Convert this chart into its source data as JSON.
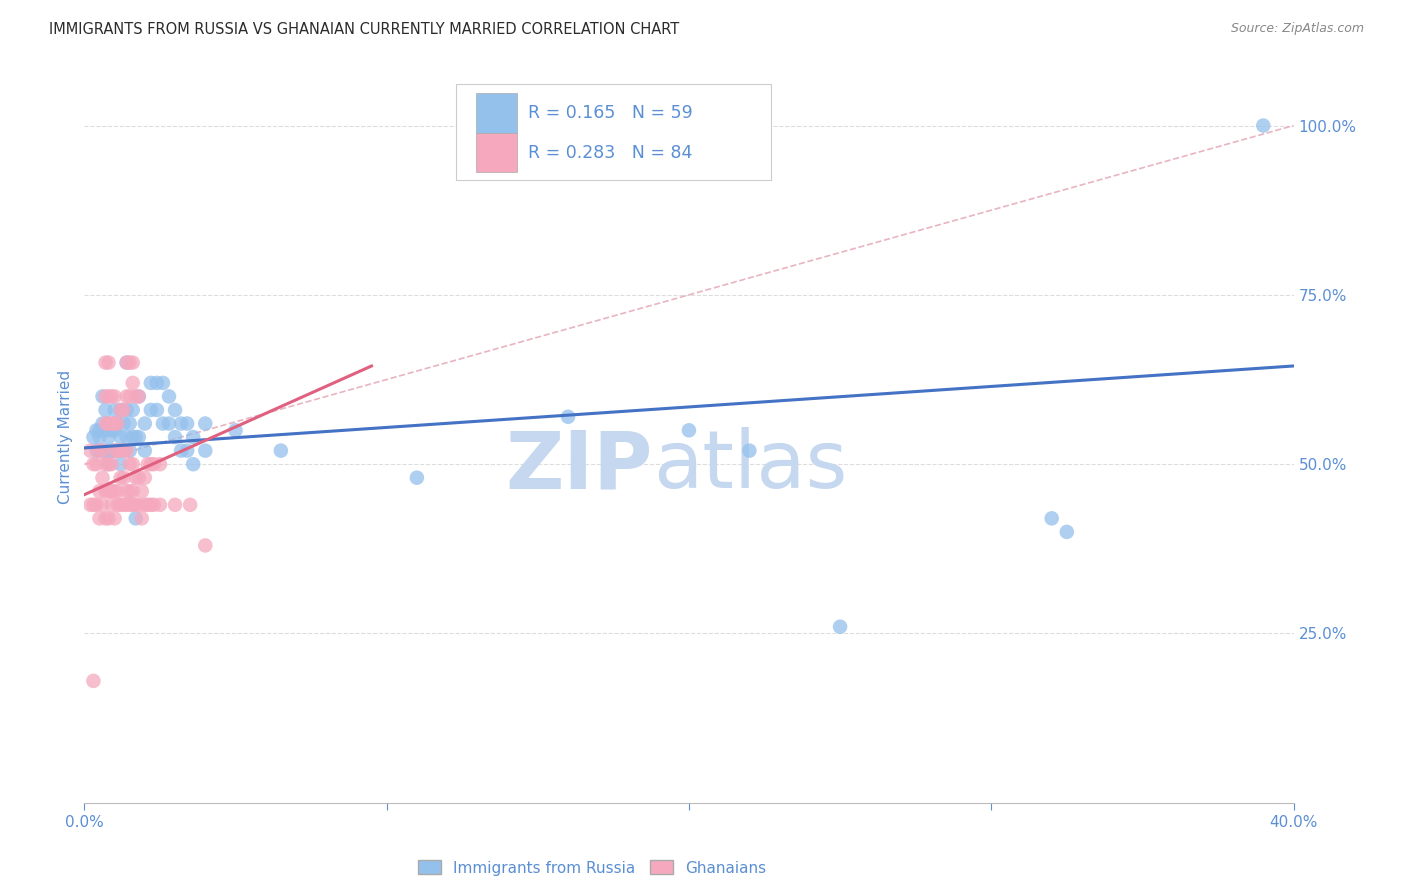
{
  "title": "IMMIGRANTS FROM RUSSIA VS GHANAIAN CURRENTLY MARRIED CORRELATION CHART",
  "source": "Source: ZipAtlas.com",
  "ylabel": "Currently Married",
  "xlim": [
    0.0,
    0.4
  ],
  "ylim": [
    0.0,
    1.08
  ],
  "x_ticks": [
    0.0,
    0.1,
    0.2,
    0.3,
    0.4
  ],
  "x_tick_labels_show": [
    "0.0%",
    "",
    "",
    "",
    "40.0%"
  ],
  "y_ticks": [
    0.25,
    0.5,
    0.75,
    1.0
  ],
  "y_tick_labels": [
    "25.0%",
    "50.0%",
    "75.0%",
    "100.0%"
  ],
  "legend_label1": "Immigrants from Russia",
  "legend_label2": "Ghanaians",
  "blue_color": "#94C0EC",
  "pink_color": "#F5A8BE",
  "title_color": "#333333",
  "axis_label_color": "#5B8FD4",
  "watermark_color": "#C5D8F0",
  "blue_scatter": [
    [
      0.003,
      0.54
    ],
    [
      0.004,
      0.52
    ],
    [
      0.004,
      0.55
    ],
    [
      0.005,
      0.52
    ],
    [
      0.005,
      0.54
    ],
    [
      0.005,
      0.55
    ],
    [
      0.006,
      0.52
    ],
    [
      0.006,
      0.56
    ],
    [
      0.006,
      0.6
    ],
    [
      0.007,
      0.52
    ],
    [
      0.007,
      0.55
    ],
    [
      0.007,
      0.58
    ],
    [
      0.008,
      0.5
    ],
    [
      0.008,
      0.54
    ],
    [
      0.008,
      0.56
    ],
    [
      0.009,
      0.52
    ],
    [
      0.009,
      0.55
    ],
    [
      0.01,
      0.52
    ],
    [
      0.01,
      0.55
    ],
    [
      0.01,
      0.58
    ],
    [
      0.011,
      0.52
    ],
    [
      0.011,
      0.56
    ],
    [
      0.012,
      0.5
    ],
    [
      0.012,
      0.54
    ],
    [
      0.012,
      0.58
    ],
    [
      0.013,
      0.52
    ],
    [
      0.013,
      0.56
    ],
    [
      0.014,
      0.54
    ],
    [
      0.014,
      0.58
    ],
    [
      0.014,
      0.65
    ],
    [
      0.015,
      0.52
    ],
    [
      0.015,
      0.56
    ],
    [
      0.016,
      0.54
    ],
    [
      0.016,
      0.58
    ],
    [
      0.017,
      0.42
    ],
    [
      0.017,
      0.54
    ],
    [
      0.018,
      0.54
    ],
    [
      0.018,
      0.6
    ],
    [
      0.02,
      0.52
    ],
    [
      0.02,
      0.56
    ],
    [
      0.022,
      0.58
    ],
    [
      0.022,
      0.62
    ],
    [
      0.024,
      0.58
    ],
    [
      0.024,
      0.62
    ],
    [
      0.026,
      0.56
    ],
    [
      0.026,
      0.62
    ],
    [
      0.028,
      0.56
    ],
    [
      0.028,
      0.6
    ],
    [
      0.03,
      0.54
    ],
    [
      0.03,
      0.58
    ],
    [
      0.032,
      0.52
    ],
    [
      0.032,
      0.56
    ],
    [
      0.034,
      0.52
    ],
    [
      0.034,
      0.56
    ],
    [
      0.036,
      0.5
    ],
    [
      0.036,
      0.54
    ],
    [
      0.04,
      0.52
    ],
    [
      0.04,
      0.56
    ],
    [
      0.05,
      0.55
    ],
    [
      0.065,
      0.52
    ],
    [
      0.11,
      0.48
    ],
    [
      0.16,
      0.57
    ],
    [
      0.2,
      0.55
    ],
    [
      0.22,
      0.52
    ],
    [
      0.25,
      0.26
    ],
    [
      0.32,
      0.42
    ],
    [
      0.325,
      0.4
    ],
    [
      0.39,
      1.0
    ]
  ],
  "pink_scatter": [
    [
      0.002,
      0.52
    ],
    [
      0.002,
      0.44
    ],
    [
      0.003,
      0.5
    ],
    [
      0.003,
      0.44
    ],
    [
      0.004,
      0.5
    ],
    [
      0.004,
      0.44
    ],
    [
      0.005,
      0.52
    ],
    [
      0.005,
      0.46
    ],
    [
      0.005,
      0.42
    ],
    [
      0.006,
      0.52
    ],
    [
      0.006,
      0.48
    ],
    [
      0.006,
      0.44
    ],
    [
      0.007,
      0.5
    ],
    [
      0.007,
      0.46
    ],
    [
      0.007,
      0.42
    ],
    [
      0.007,
      0.56
    ],
    [
      0.007,
      0.6
    ],
    [
      0.007,
      0.65
    ],
    [
      0.008,
      0.5
    ],
    [
      0.008,
      0.46
    ],
    [
      0.008,
      0.42
    ],
    [
      0.008,
      0.56
    ],
    [
      0.008,
      0.6
    ],
    [
      0.008,
      0.65
    ],
    [
      0.009,
      0.5
    ],
    [
      0.009,
      0.46
    ],
    [
      0.009,
      0.44
    ],
    [
      0.009,
      0.56
    ],
    [
      0.009,
      0.6
    ],
    [
      0.01,
      0.52
    ],
    [
      0.01,
      0.46
    ],
    [
      0.01,
      0.42
    ],
    [
      0.01,
      0.56
    ],
    [
      0.01,
      0.6
    ],
    [
      0.011,
      0.52
    ],
    [
      0.011,
      0.46
    ],
    [
      0.011,
      0.44
    ],
    [
      0.011,
      0.56
    ],
    [
      0.012,
      0.52
    ],
    [
      0.012,
      0.48
    ],
    [
      0.012,
      0.44
    ],
    [
      0.012,
      0.58
    ],
    [
      0.013,
      0.52
    ],
    [
      0.013,
      0.48
    ],
    [
      0.013,
      0.44
    ],
    [
      0.013,
      0.58
    ],
    [
      0.014,
      0.52
    ],
    [
      0.014,
      0.46
    ],
    [
      0.014,
      0.44
    ],
    [
      0.014,
      0.6
    ],
    [
      0.014,
      0.65
    ],
    [
      0.015,
      0.5
    ],
    [
      0.015,
      0.46
    ],
    [
      0.015,
      0.44
    ],
    [
      0.015,
      0.6
    ],
    [
      0.015,
      0.65
    ],
    [
      0.016,
      0.5
    ],
    [
      0.016,
      0.46
    ],
    [
      0.016,
      0.44
    ],
    [
      0.016,
      0.62
    ],
    [
      0.016,
      0.65
    ],
    [
      0.017,
      0.48
    ],
    [
      0.017,
      0.44
    ],
    [
      0.017,
      0.6
    ],
    [
      0.018,
      0.48
    ],
    [
      0.018,
      0.44
    ],
    [
      0.018,
      0.6
    ],
    [
      0.019,
      0.46
    ],
    [
      0.019,
      0.42
    ],
    [
      0.02,
      0.48
    ],
    [
      0.02,
      0.44
    ],
    [
      0.021,
      0.5
    ],
    [
      0.021,
      0.44
    ],
    [
      0.022,
      0.5
    ],
    [
      0.022,
      0.44
    ],
    [
      0.023,
      0.5
    ],
    [
      0.023,
      0.44
    ],
    [
      0.025,
      0.5
    ],
    [
      0.025,
      0.44
    ],
    [
      0.03,
      0.44
    ],
    [
      0.035,
      0.44
    ],
    [
      0.04,
      0.38
    ],
    [
      0.003,
      0.18
    ]
  ],
  "blue_line": [
    [
      0.0,
      0.524
    ],
    [
      0.4,
      0.645
    ]
  ],
  "pink_line": [
    [
      0.0,
      0.455
    ],
    [
      0.095,
      0.645
    ]
  ],
  "diag_line_color": "#E8B4C0",
  "diag_line": [
    [
      0.0,
      0.5
    ],
    [
      0.4,
      1.0
    ]
  ],
  "grid_color": "#DDDDDD",
  "background_color": "#FFFFFF",
  "blue_trend_color": "#4472C4",
  "pink_trend_color": "#E06080"
}
